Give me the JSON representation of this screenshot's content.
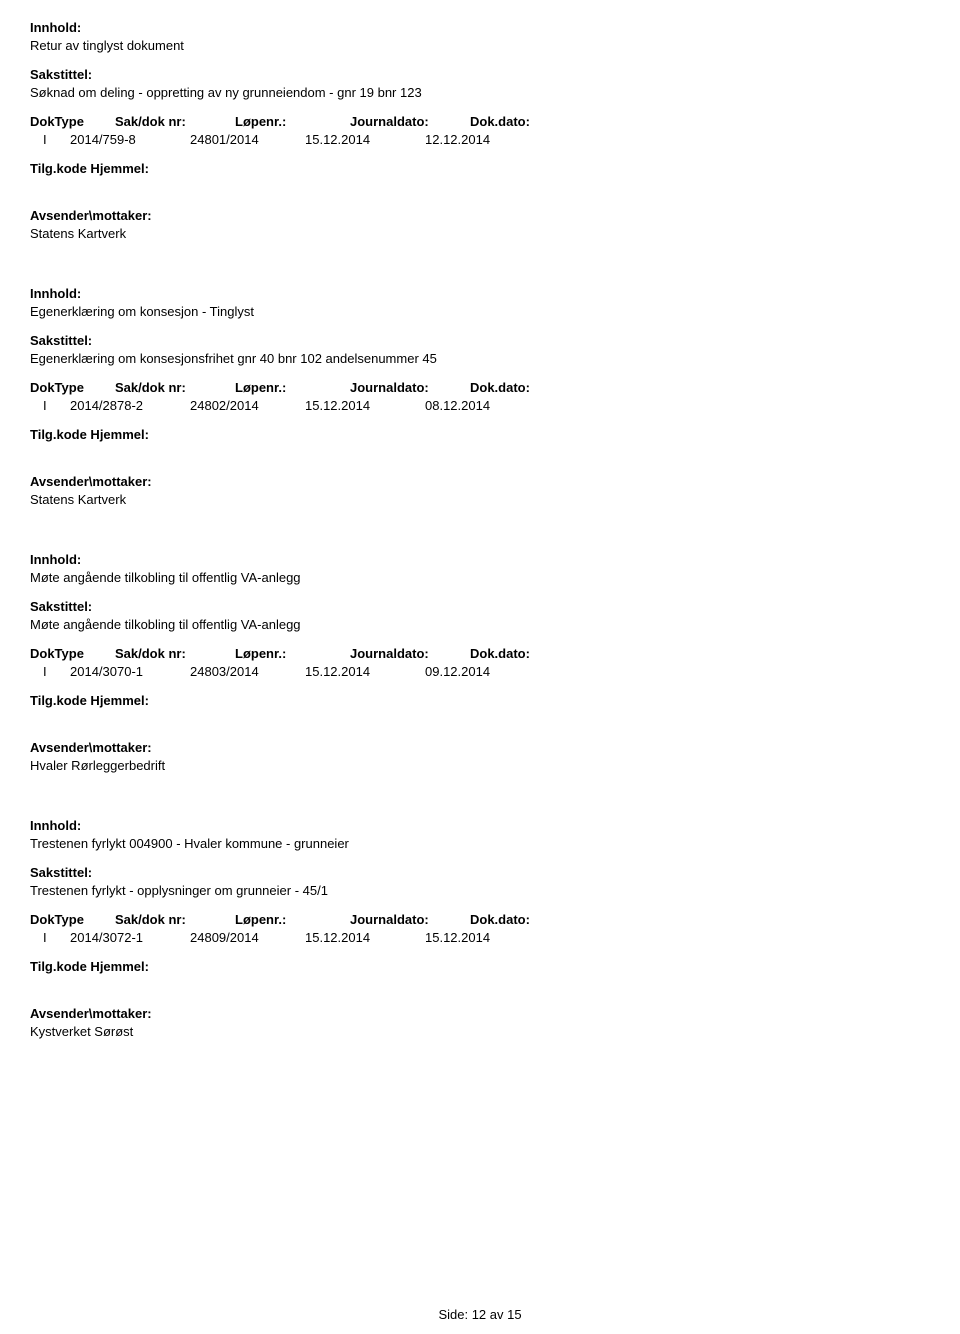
{
  "records": [
    {
      "innhold_label": "Innhold:",
      "innhold": "Retur av tinglyst dokument",
      "sakstittel_label": "Sakstittel:",
      "sakstittel": "Søknad om deling - oppretting av ny grunneiendom - gnr 19 bnr 123",
      "header_doktype": "DokType",
      "header_saknr": "Sak/dok nr:",
      "header_lopenr": "Løpenr.:",
      "header_journaldato": "Journaldato:",
      "header_dokdato": "Dok.dato:",
      "doktype": "I",
      "saknr": "2014/759-8",
      "lopenr": "24801/2014",
      "journaldato": "15.12.2014",
      "dokdato": "12.12.2014",
      "tilgkode": "Tilg.kode Hjemmel:",
      "avsender_label": "Avsender\\mottaker:",
      "avsender": "Statens Kartverk"
    },
    {
      "innhold_label": "Innhold:",
      "innhold": "Egenerklæring om konsesjon - Tinglyst",
      "sakstittel_label": "Sakstittel:",
      "sakstittel": "Egenerklæring om konsesjonsfrihet gnr 40 bnr 102 andelsenummer 45",
      "header_doktype": "DokType",
      "header_saknr": "Sak/dok nr:",
      "header_lopenr": "Løpenr.:",
      "header_journaldato": "Journaldato:",
      "header_dokdato": "Dok.dato:",
      "doktype": "I",
      "saknr": "2014/2878-2",
      "lopenr": "24802/2014",
      "journaldato": "15.12.2014",
      "dokdato": "08.12.2014",
      "tilgkode": "Tilg.kode Hjemmel:",
      "avsender_label": "Avsender\\mottaker:",
      "avsender": "Statens Kartverk"
    },
    {
      "innhold_label": "Innhold:",
      "innhold": "Møte angående tilkobling til offentlig VA-anlegg",
      "sakstittel_label": "Sakstittel:",
      "sakstittel": "Møte angående tilkobling til offentlig VA-anlegg",
      "header_doktype": "DokType",
      "header_saknr": "Sak/dok nr:",
      "header_lopenr": "Løpenr.:",
      "header_journaldato": "Journaldato:",
      "header_dokdato": "Dok.dato:",
      "doktype": "I",
      "saknr": "2014/3070-1",
      "lopenr": "24803/2014",
      "journaldato": "15.12.2014",
      "dokdato": "09.12.2014",
      "tilgkode": "Tilg.kode Hjemmel:",
      "avsender_label": "Avsender\\mottaker:",
      "avsender": "Hvaler Rørleggerbedrift"
    },
    {
      "innhold_label": "Innhold:",
      "innhold": "Trestenen fyrlykt 004900 - Hvaler kommune - grunneier",
      "sakstittel_label": "Sakstittel:",
      "sakstittel": "Trestenen fyrlykt - opplysninger om grunneier - 45/1",
      "header_doktype": "DokType",
      "header_saknr": "Sak/dok nr:",
      "header_lopenr": "Løpenr.:",
      "header_journaldato": "Journaldato:",
      "header_dokdato": "Dok.dato:",
      "doktype": "I",
      "saknr": "2014/3072-1",
      "lopenr": "24809/2014",
      "journaldato": "15.12.2014",
      "dokdato": "15.12.2014",
      "tilgkode": "Tilg.kode Hjemmel:",
      "avsender_label": "Avsender\\mottaker:",
      "avsender": "Kystverket Sørøst"
    }
  ],
  "footer": {
    "label": "Side: ",
    "page": "12 av  15"
  }
}
